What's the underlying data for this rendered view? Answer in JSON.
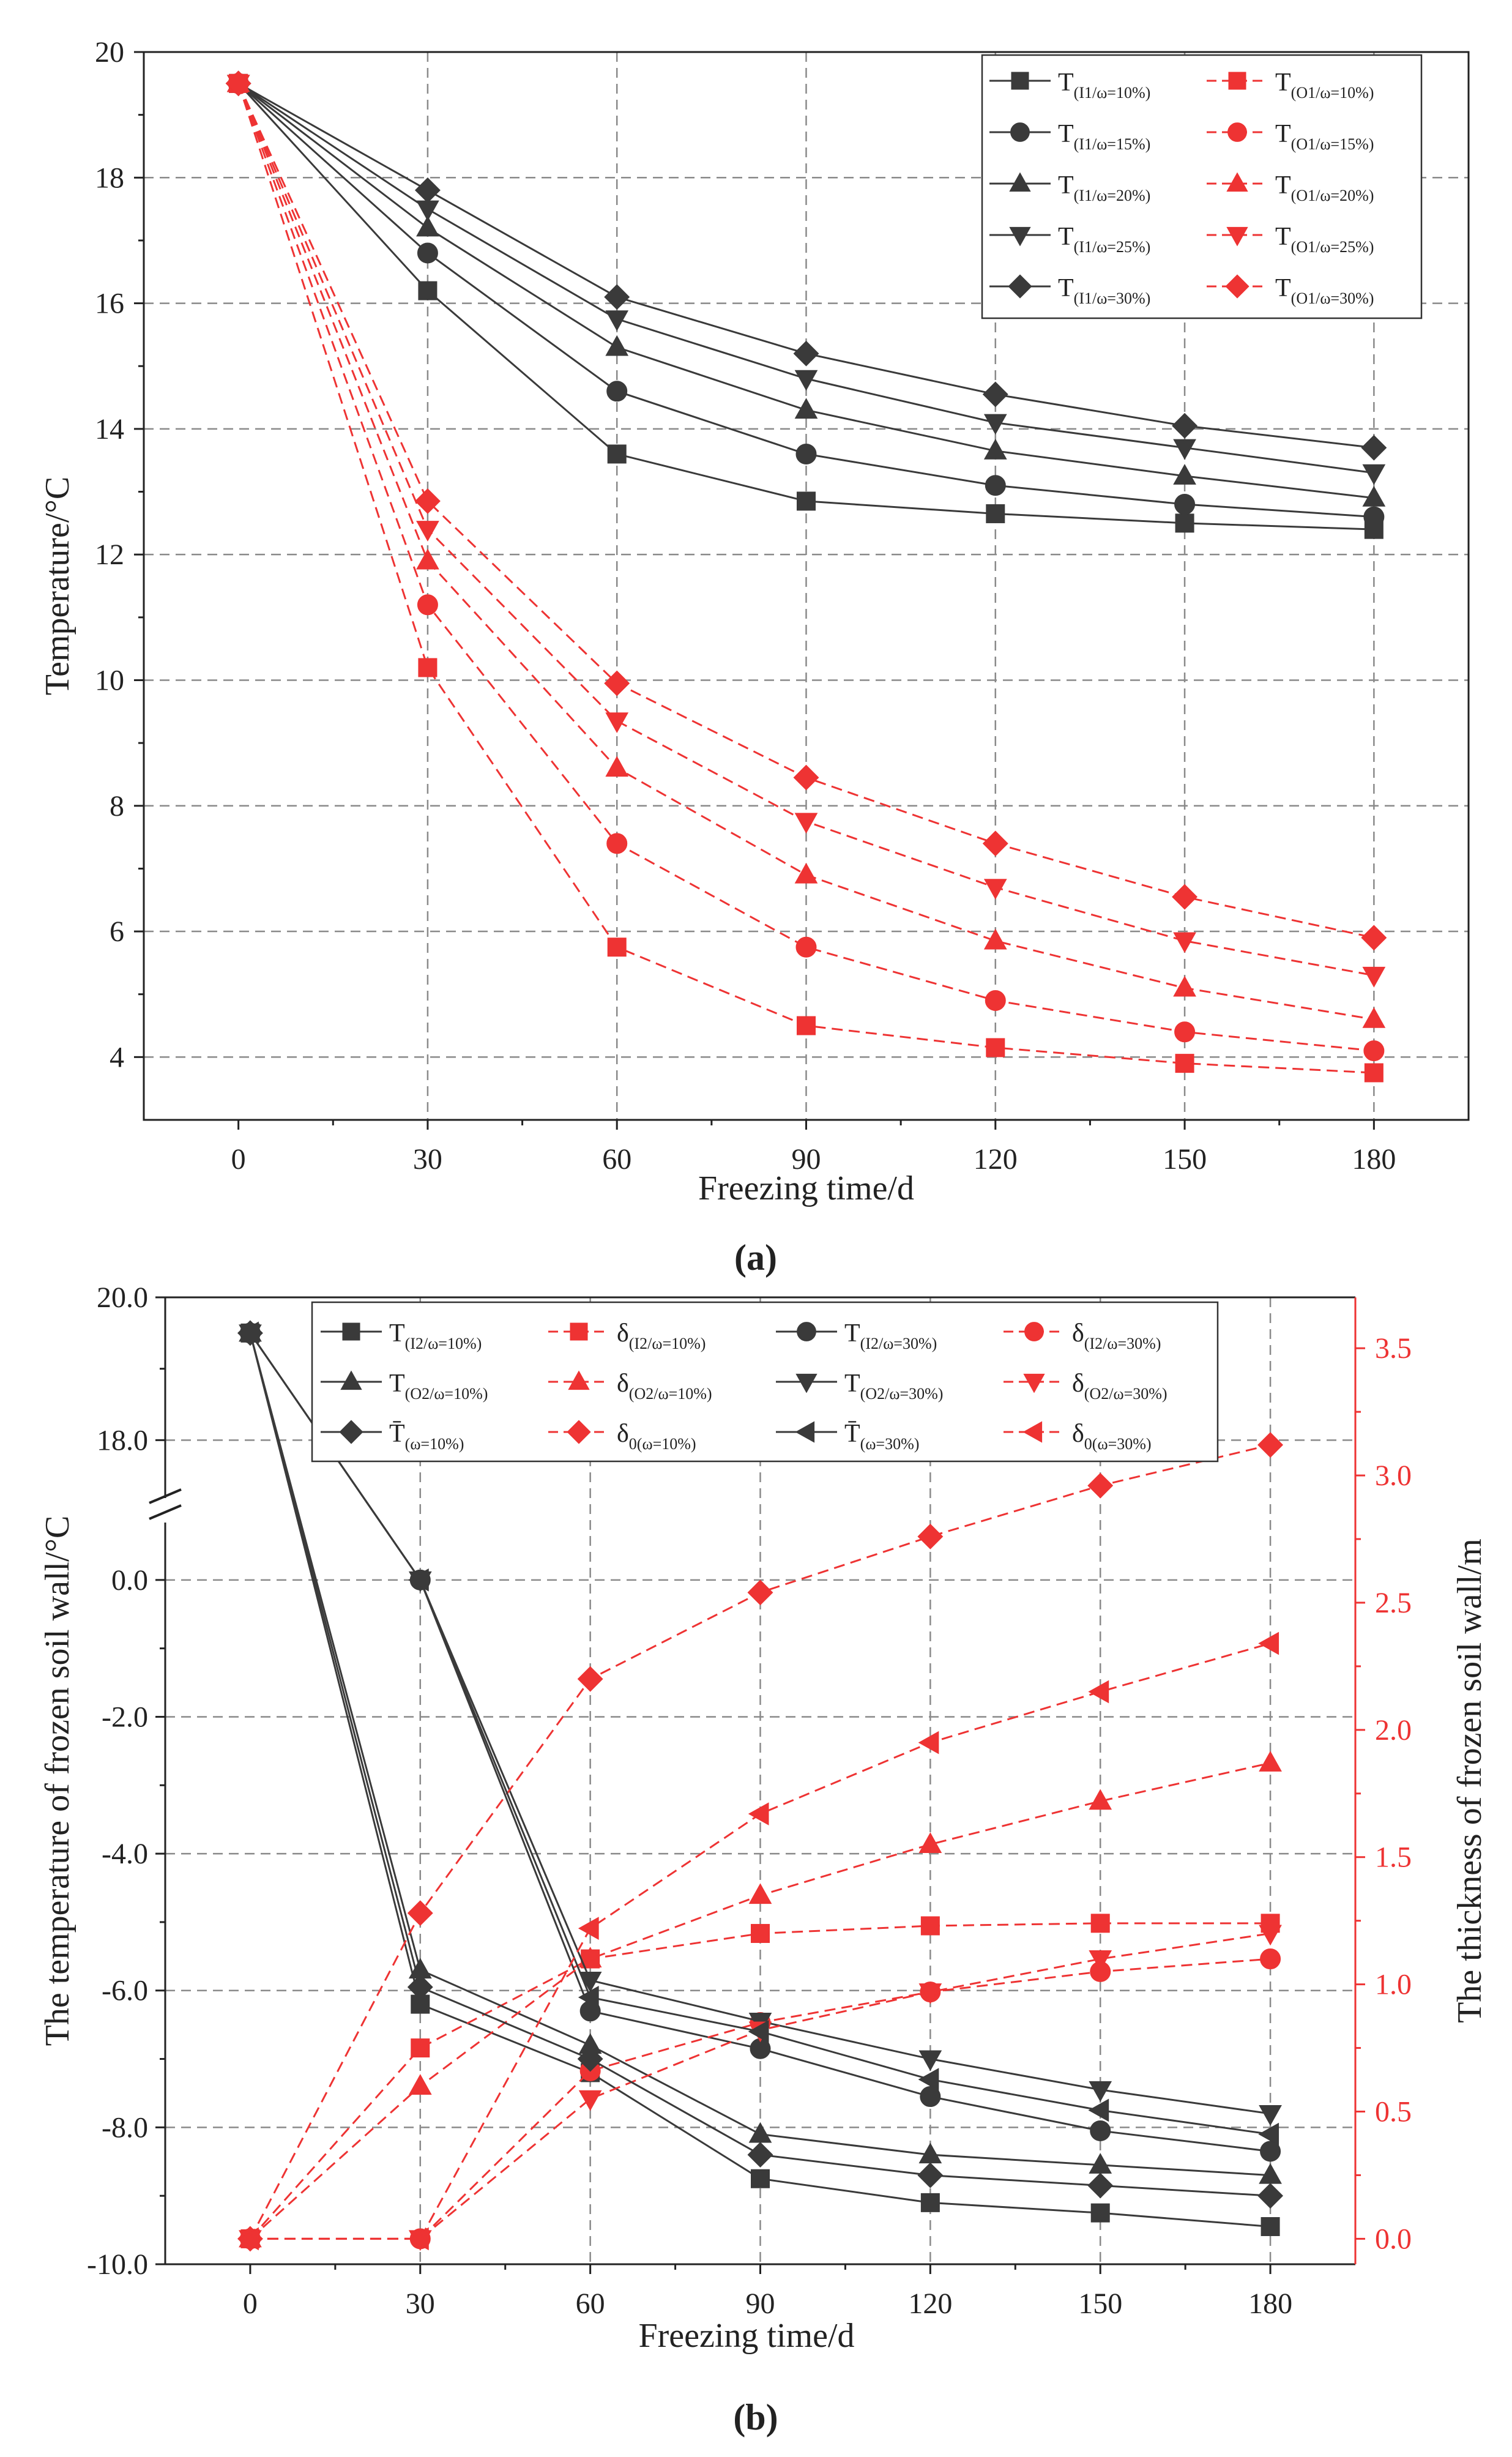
{
  "colors": {
    "black": "#3a3a3a",
    "red": "#ee3333",
    "grid": "#8a8a8a"
  },
  "chart_data": [
    {
      "type": "line",
      "caption": "(a)",
      "xlabel": "Freezing time/d",
      "ylabel": "Temperature/°C",
      "x": [
        0,
        30,
        60,
        90,
        120,
        150,
        180
      ],
      "xticks": [
        "0",
        "30",
        "60",
        "90",
        "120",
        "150",
        "180"
      ],
      "ylim": [
        3,
        20
      ],
      "yticks": [
        "4",
        "6",
        "8",
        "10",
        "12",
        "14",
        "16",
        "18",
        "20"
      ],
      "grid": true,
      "legend_position": "top-right",
      "series": [
        {
          "name": "T(I1/ω=10%)",
          "label_main": "T",
          "label_sub": "(I1/ω=10%)",
          "color": "black",
          "style": "solid",
          "marker": "square",
          "values": [
            19.5,
            16.2,
            13.6,
            12.85,
            12.65,
            12.5,
            12.4
          ]
        },
        {
          "name": "T(I1/ω=15%)",
          "label_main": "T",
          "label_sub": "(I1/ω=15%)",
          "color": "black",
          "style": "solid",
          "marker": "circle",
          "values": [
            19.5,
            16.8,
            14.6,
            13.6,
            13.1,
            12.8,
            12.6
          ]
        },
        {
          "name": "T(I1/ω=20%)",
          "label_main": "T",
          "label_sub": "(I1/ω=20%)",
          "color": "black",
          "style": "solid",
          "marker": "triangle-up",
          "values": [
            19.5,
            17.2,
            15.3,
            14.3,
            13.65,
            13.25,
            12.9
          ]
        },
        {
          "name": "T(I1/ω=25%)",
          "label_main": "T",
          "label_sub": "(I1/ω=25%)",
          "color": "black",
          "style": "solid",
          "marker": "triangle-down",
          "values": [
            19.5,
            17.5,
            15.75,
            14.8,
            14.1,
            13.7,
            13.3
          ]
        },
        {
          "name": "T(I1/ω=30%)",
          "label_main": "T",
          "label_sub": "(I1/ω=30%)",
          "color": "black",
          "style": "solid",
          "marker": "diamond",
          "values": [
            19.5,
            17.8,
            16.1,
            15.2,
            14.55,
            14.05,
            13.7
          ]
        },
        {
          "name": "T(O1/ω=10%)",
          "label_main": "T",
          "label_sub": "(O1/ω=10%)",
          "color": "red",
          "style": "dashed",
          "marker": "square",
          "values": [
            19.5,
            10.2,
            5.75,
            4.5,
            4.15,
            3.9,
            3.75
          ]
        },
        {
          "name": "T(O1/ω=15%)",
          "label_main": "T",
          "label_sub": "(O1/ω=15%)",
          "color": "red",
          "style": "dashed",
          "marker": "circle",
          "values": [
            19.5,
            11.2,
            7.4,
            5.75,
            4.9,
            4.4,
            4.1
          ]
        },
        {
          "name": "T(O1/ω=20%)",
          "label_main": "T",
          "label_sub": "(O1/ω=20%)",
          "color": "red",
          "style": "dashed",
          "marker": "triangle-up",
          "values": [
            19.5,
            11.9,
            8.6,
            6.9,
            5.85,
            5.1,
            4.6
          ]
        },
        {
          "name": "T(O1/ω=25%)",
          "label_main": "T",
          "label_sub": "(O1/ω=25%)",
          "color": "red",
          "style": "dashed",
          "marker": "triangle-down",
          "values": [
            19.5,
            12.4,
            9.35,
            7.75,
            6.7,
            5.85,
            5.3
          ]
        },
        {
          "name": "T(O1/ω=30%)",
          "label_main": "T",
          "label_sub": "(O1/ω=30%)",
          "color": "red",
          "style": "dashed",
          "marker": "diamond",
          "values": [
            19.5,
            12.85,
            9.95,
            8.45,
            7.4,
            6.55,
            5.9
          ]
        }
      ]
    },
    {
      "type": "line",
      "caption": "(b)",
      "xlabel": "Freezing time/d",
      "ylabel": "The temperature of frozen soil wall/°C",
      "y2label": "The thickness of frozen soil wall/m",
      "x": [
        0,
        30,
        60,
        90,
        120,
        150,
        180
      ],
      "xticks": [
        "0",
        "30",
        "60",
        "90",
        "120",
        "150",
        "180"
      ],
      "ylim_lower": [
        -10,
        1
      ],
      "ylim_upper": [
        17,
        20
      ],
      "y_axis_break": [
        1,
        17
      ],
      "yticks": [
        "-10.0",
        "-8.0",
        "-6.0",
        "-4.0",
        "-2.0",
        "0.0",
        "18.0",
        "20.0"
      ],
      "y2lim": [
        -0.1,
        3.7
      ],
      "y2ticks": [
        "0.0",
        "0.5",
        "1.0",
        "1.5",
        "2.0",
        "2.5",
        "3.0",
        "3.5"
      ],
      "grid": true,
      "legend_position": "top",
      "series": [
        {
          "name": "T(I2/ω=10%)",
          "label_main": "T",
          "label_sub": "(I2/ω=10%)",
          "axis": "left",
          "color": "black",
          "style": "solid",
          "marker": "square",
          "values": [
            19.5,
            -6.2,
            -7.2,
            -8.75,
            -9.1,
            -9.25,
            -9.45
          ]
        },
        {
          "name": "δ(I2/ω=10%)",
          "label_main": "δ",
          "label_sub": "(I2/ω=10%)",
          "axis": "right",
          "color": "red",
          "style": "dashed",
          "marker": "square",
          "values": [
            0,
            0.75,
            1.1,
            1.2,
            1.23,
            1.24,
            1.24
          ]
        },
        {
          "name": "T(I2/ω=30%)",
          "label_main": "T",
          "label_sub": "(I2/ω=30%)",
          "axis": "left",
          "color": "black",
          "style": "solid",
          "marker": "circle",
          "values": [
            19.5,
            0,
            -6.3,
            -6.85,
            -7.55,
            -8.05,
            -8.35
          ]
        },
        {
          "name": "δ(I2/ω=30%)",
          "label_main": "δ",
          "label_sub": "(I2/ω=30%)",
          "axis": "right",
          "color": "red",
          "style": "dashed",
          "marker": "circle",
          "values": [
            0,
            0,
            0.66,
            0.85,
            0.97,
            1.05,
            1.1
          ]
        },
        {
          "name": "T(O2/ω=10%)",
          "label_main": "T",
          "label_sub": "(O2/ω=10%)",
          "axis": "left",
          "color": "black",
          "style": "solid",
          "marker": "triangle-up",
          "values": [
            19.5,
            -5.7,
            -6.8,
            -8.1,
            -8.4,
            -8.55,
            -8.7
          ]
        },
        {
          "name": "δ(O2/ω=10%)",
          "label_main": "δ",
          "label_sub": "(O2/ω=10%)",
          "axis": "right",
          "color": "red",
          "style": "dashed",
          "marker": "triangle-up",
          "values": [
            0,
            0.6,
            1.1,
            1.35,
            1.55,
            1.72,
            1.87
          ]
        },
        {
          "name": "T(O2/ω=30%)",
          "label_main": "T",
          "label_sub": "(O2/ω=30%)",
          "axis": "left",
          "color": "black",
          "style": "solid",
          "marker": "triangle-down",
          "values": [
            19.5,
            0,
            -5.85,
            -6.45,
            -7.0,
            -7.45,
            -7.8
          ]
        },
        {
          "name": "δ(O2/ω=30%)",
          "label_main": "δ",
          "label_sub": "(O2/ω=30%)",
          "axis": "right",
          "color": "red",
          "style": "dashed",
          "marker": "triangle-down",
          "values": [
            0,
            0,
            0.55,
            0.82,
            0.97,
            1.1,
            1.2
          ]
        },
        {
          "name": "T̄(ω=10%)",
          "label_main": "T̄",
          "label_sub": "(ω=10%)",
          "axis": "left",
          "color": "black",
          "style": "solid",
          "marker": "diamond",
          "values": [
            19.5,
            -5.95,
            -7.0,
            -8.4,
            -8.7,
            -8.85,
            -9.0
          ]
        },
        {
          "name": "δ0(ω=10%)",
          "label_main": "δ",
          "label_sub": "0(ω=10%)",
          "axis": "right",
          "color": "red",
          "style": "dashed",
          "marker": "diamond",
          "values": [
            0,
            1.28,
            2.2,
            2.54,
            2.76,
            2.96,
            3.12
          ]
        },
        {
          "name": "T̄(ω=30%)",
          "label_main": "T̄",
          "label_sub": "(ω=30%)",
          "axis": "left",
          "color": "black",
          "style": "solid",
          "marker": "triangle-left",
          "values": [
            19.5,
            0,
            -6.1,
            -6.6,
            -7.3,
            -7.75,
            -8.1
          ]
        },
        {
          "name": "δ0(ω=30%)",
          "label_main": "δ",
          "label_sub": "0(ω=30%)",
          "axis": "right",
          "color": "red",
          "style": "dashed",
          "marker": "triangle-left",
          "values": [
            0,
            0,
            1.22,
            1.67,
            1.95,
            2.15,
            2.34
          ]
        }
      ]
    }
  ]
}
